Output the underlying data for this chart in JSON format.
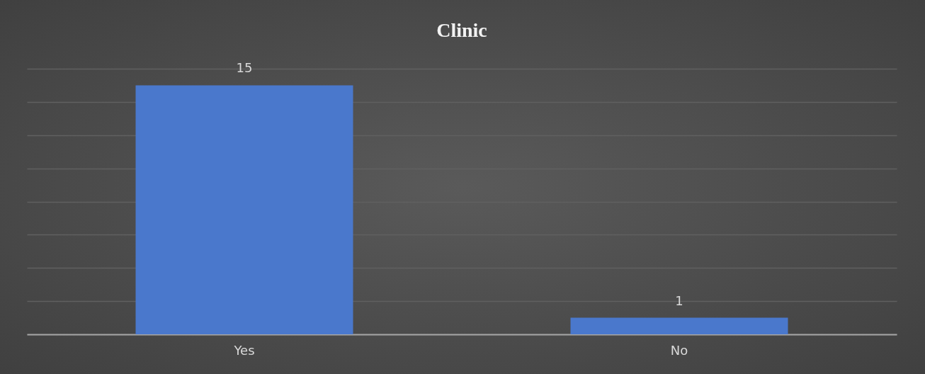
{
  "chart_data": {
    "type": "bar",
    "title": "Clinic",
    "categories": [
      "Yes",
      "No"
    ],
    "values": [
      15,
      1
    ],
    "color": "#4a78cc",
    "data_labels": true,
    "ylim": [
      0,
      16
    ],
    "yticks": [
      {
        "value": 0,
        "label": null
      },
      {
        "value": 2,
        "label": null
      },
      {
        "value": 4,
        "label": null
      },
      {
        "value": 6,
        "label": null
      },
      {
        "value": 8,
        "label": null
      },
      {
        "value": 10,
        "label": null
      },
      {
        "value": 12,
        "label": null
      },
      {
        "value": 14,
        "label": null
      },
      {
        "value": 16,
        "label": null
      }
    ],
    "grid": "y",
    "tick_labels": "x"
  }
}
